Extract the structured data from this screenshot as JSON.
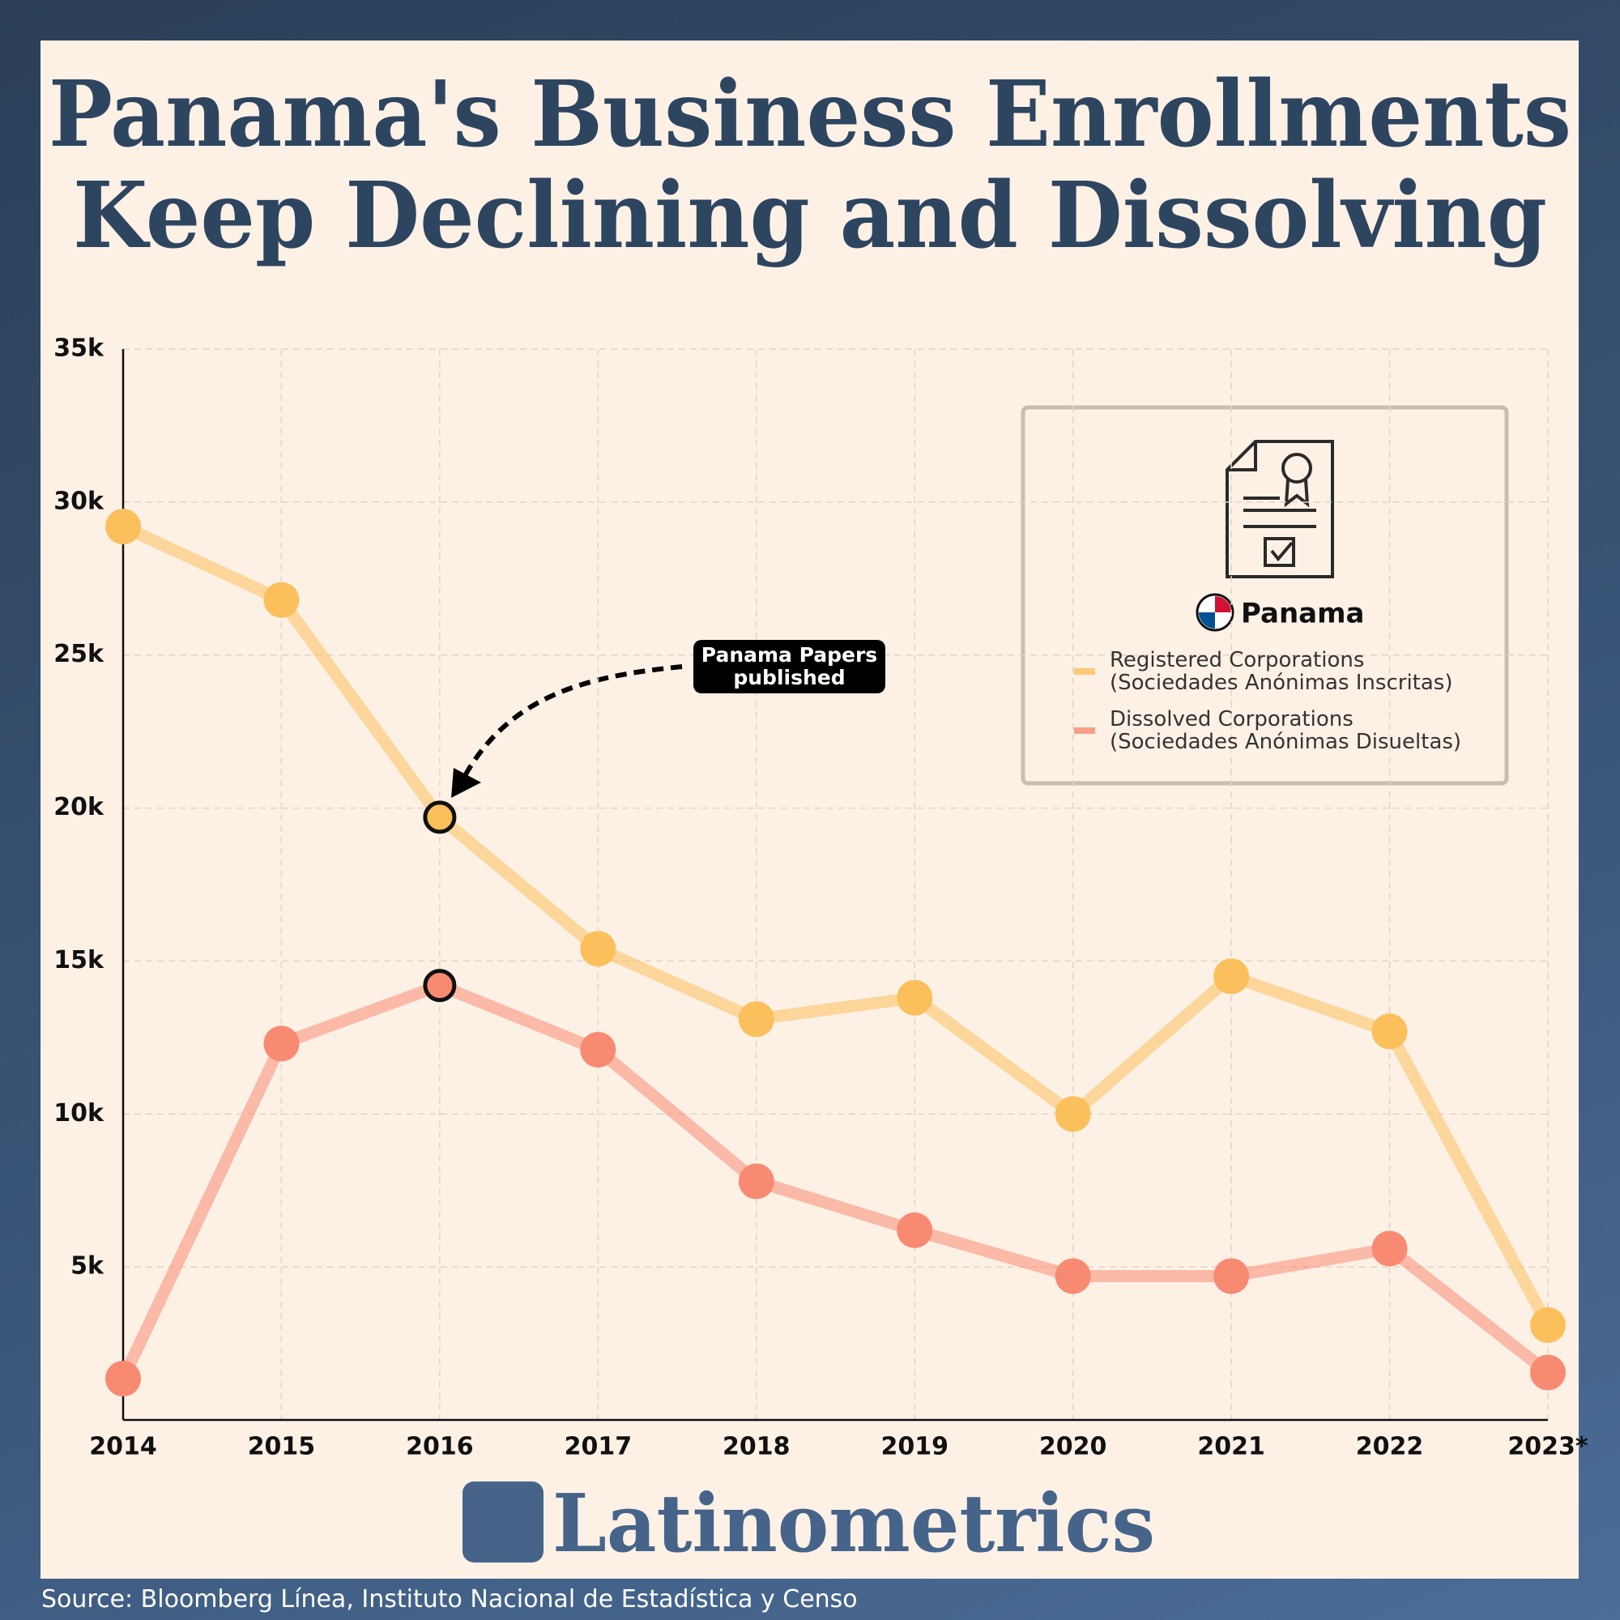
{
  "chart_data": {
    "type": "line",
    "title": "Panama's Business Enrollments",
    "subtitle": "Keep Declining and Dissolving",
    "categories": [
      "2014",
      "2015",
      "2016",
      "2017",
      "2018",
      "2019",
      "2020",
      "2021",
      "2022",
      "2023*"
    ],
    "series": [
      {
        "name": "Registered Corporations\n(Sociedades Anónimas Inscritas)",
        "color": "#fbbf5b",
        "values": [
          29200,
          26800,
          19700,
          15400,
          13100,
          13800,
          10000,
          14500,
          12700,
          3100
        ]
      },
      {
        "name": "Dissolved Corporations\n(Sociedades Anónimas Disueltas)",
        "color": "#f98a72",
        "values": [
          1350,
          12300,
          14200,
          12100,
          7800,
          6200,
          4700,
          4700,
          5600,
          1550
        ]
      }
    ],
    "ylim": [
      0,
      35000
    ],
    "yticks": [
      {
        "value": 5000,
        "label": "5k"
      },
      {
        "value": 10000,
        "label": "10k"
      },
      {
        "value": 15000,
        "label": "15k"
      },
      {
        "value": 20000,
        "label": "20k"
      },
      {
        "value": 25000,
        "label": "25k"
      },
      {
        "value": 30000,
        "label": "30k"
      },
      {
        "value": 35000,
        "label": "35k"
      }
    ],
    "grid": true,
    "legend_title": "Panama",
    "annotation": {
      "text": "Panama Papers\npublished",
      "index": 2
    },
    "brand": "Latinometrics",
    "source": "Source: Bloomberg Línea, Instituto Nacional de Estadística y Censo"
  }
}
